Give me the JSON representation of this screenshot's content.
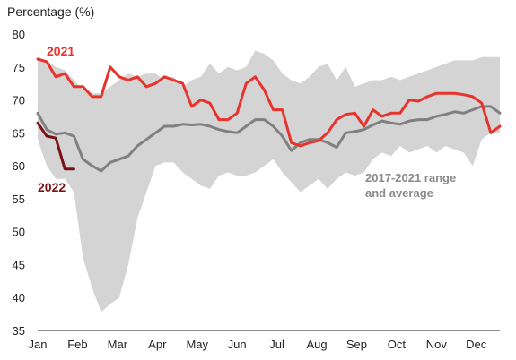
{
  "chart_data": {
    "type": "line",
    "title": "",
    "ylabel": "Percentage (%)",
    "xlabel": "",
    "ylim": [
      35,
      80
    ],
    "yticks": [
      35,
      40,
      45,
      50,
      55,
      60,
      65,
      70,
      75,
      80
    ],
    "xlim": [
      1,
      52
    ],
    "month_labels": [
      "Jan",
      "Feb",
      "Mar",
      "Apr",
      "May",
      "Jun",
      "Jul",
      "Aug",
      "Sep",
      "Oct",
      "Nov",
      "Dec"
    ],
    "month_weeks": [
      1,
      5.4,
      9.8,
      14.2,
      18.6,
      23,
      27.4,
      31.8,
      36.2,
      40.6,
      45,
      49.4
    ],
    "grid": false,
    "colors": {
      "range": "#d4d4d4",
      "average": "#808080",
      "series_2021": "#e8332d",
      "series_2022": "#7b1113",
      "range_label": "#8a8a8a"
    },
    "range": {
      "name": "2017-2021 range",
      "week": [
        1,
        2,
        3,
        4,
        5,
        6,
        7,
        8,
        9,
        10,
        11,
        12,
        13,
        14,
        15,
        16,
        17,
        18,
        19,
        20,
        21,
        22,
        23,
        24,
        25,
        26,
        27,
        28,
        29,
        30,
        31,
        32,
        33,
        34,
        35,
        36,
        37,
        38,
        39,
        40,
        41,
        42,
        43,
        44,
        45,
        46,
        47,
        48,
        49,
        50,
        51,
        52
      ],
      "max": [
        76.5,
        76,
        75,
        74.5,
        73,
        71.5,
        71,
        71,
        72,
        73,
        74,
        73.5,
        74,
        74,
        73,
        73.5,
        72,
        73,
        73.5,
        75.5,
        74,
        75,
        74.5,
        75,
        77.5,
        77,
        76,
        74,
        73,
        72.5,
        73.5,
        75,
        75.5,
        73,
        75,
        72,
        72.5,
        73,
        73,
        73.5,
        73,
        73.5,
        74,
        74.5,
        75,
        75.5,
        76,
        76,
        76,
        76.5,
        76.5,
        76.5
      ],
      "min": [
        64,
        60,
        58,
        58,
        56,
        46,
        41.5,
        37.8,
        39,
        40,
        45,
        52,
        56,
        60,
        60.5,
        60.5,
        59,
        58,
        57,
        56.5,
        58.5,
        59,
        58.5,
        58.5,
        59,
        60,
        61,
        59,
        57.5,
        56,
        57,
        58,
        56.5,
        58,
        59,
        58.5,
        59,
        61,
        62,
        61.5,
        63,
        62,
        62.5,
        63,
        62,
        63,
        62.5,
        62,
        60,
        64,
        65,
        65
      ]
    },
    "series": [
      {
        "name": "2021",
        "week": [
          1,
          2,
          3,
          4,
          5,
          6,
          7,
          8,
          9,
          10,
          11,
          12,
          13,
          14,
          15,
          16,
          17,
          18,
          19,
          20,
          21,
          22,
          23,
          24,
          25,
          26,
          27,
          28,
          29,
          30,
          31,
          32,
          33,
          34,
          35,
          36,
          37,
          38,
          39,
          40,
          41,
          42,
          43,
          44,
          45,
          46,
          47,
          48,
          49,
          50,
          51,
          52
        ],
        "values": [
          76.2,
          75.8,
          73.5,
          74,
          72,
          72,
          70.5,
          70.5,
          75,
          73.5,
          73,
          73.5,
          72,
          72.5,
          73.5,
          73,
          72.5,
          69,
          70,
          69.5,
          67,
          67,
          68,
          72.5,
          73.5,
          71.5,
          68.5,
          68.5,
          63.5,
          63,
          63.5,
          63.8,
          65,
          67,
          67.8,
          68,
          66,
          68.5,
          67.5,
          68,
          68,
          70,
          69.8,
          70.5,
          71,
          71,
          71,
          70.8,
          70.5,
          69.5,
          65,
          66
        ]
      },
      {
        "name": "2022",
        "week": [
          1,
          2,
          3,
          4,
          5
        ],
        "values": [
          66.5,
          64.5,
          64.2,
          59.5,
          59.5
        ]
      },
      {
        "name": "average",
        "week": [
          1,
          2,
          3,
          4,
          5,
          6,
          7,
          8,
          9,
          10,
          11,
          12,
          13,
          14,
          15,
          16,
          17,
          18,
          19,
          20,
          21,
          22,
          23,
          24,
          25,
          26,
          27,
          28,
          29,
          30,
          31,
          32,
          33,
          34,
          35,
          36,
          37,
          38,
          39,
          40,
          41,
          42,
          43,
          44,
          45,
          46,
          47,
          48,
          49,
          50,
          51,
          52
        ],
        "values": [
          68,
          65.5,
          64.8,
          65,
          64.5,
          61,
          60,
          59.2,
          60.5,
          61,
          61.5,
          63,
          64,
          65,
          66,
          66,
          66.3,
          66.2,
          66.3,
          66,
          65.5,
          65.2,
          65,
          66,
          67,
          67,
          66,
          64.5,
          62.3,
          63.5,
          64,
          64,
          63.5,
          62.8,
          65,
          65.2,
          65.5,
          66.2,
          66.8,
          66.5,
          66.3,
          66.8,
          67,
          67,
          67.5,
          67.8,
          68.2,
          68,
          68.5,
          69,
          69,
          68
        ]
      }
    ],
    "annotations": {
      "label_2021": "2021",
      "label_2022": "2022",
      "range_label_line1": "2017-2021 range",
      "range_label_line2": "and average"
    }
  }
}
